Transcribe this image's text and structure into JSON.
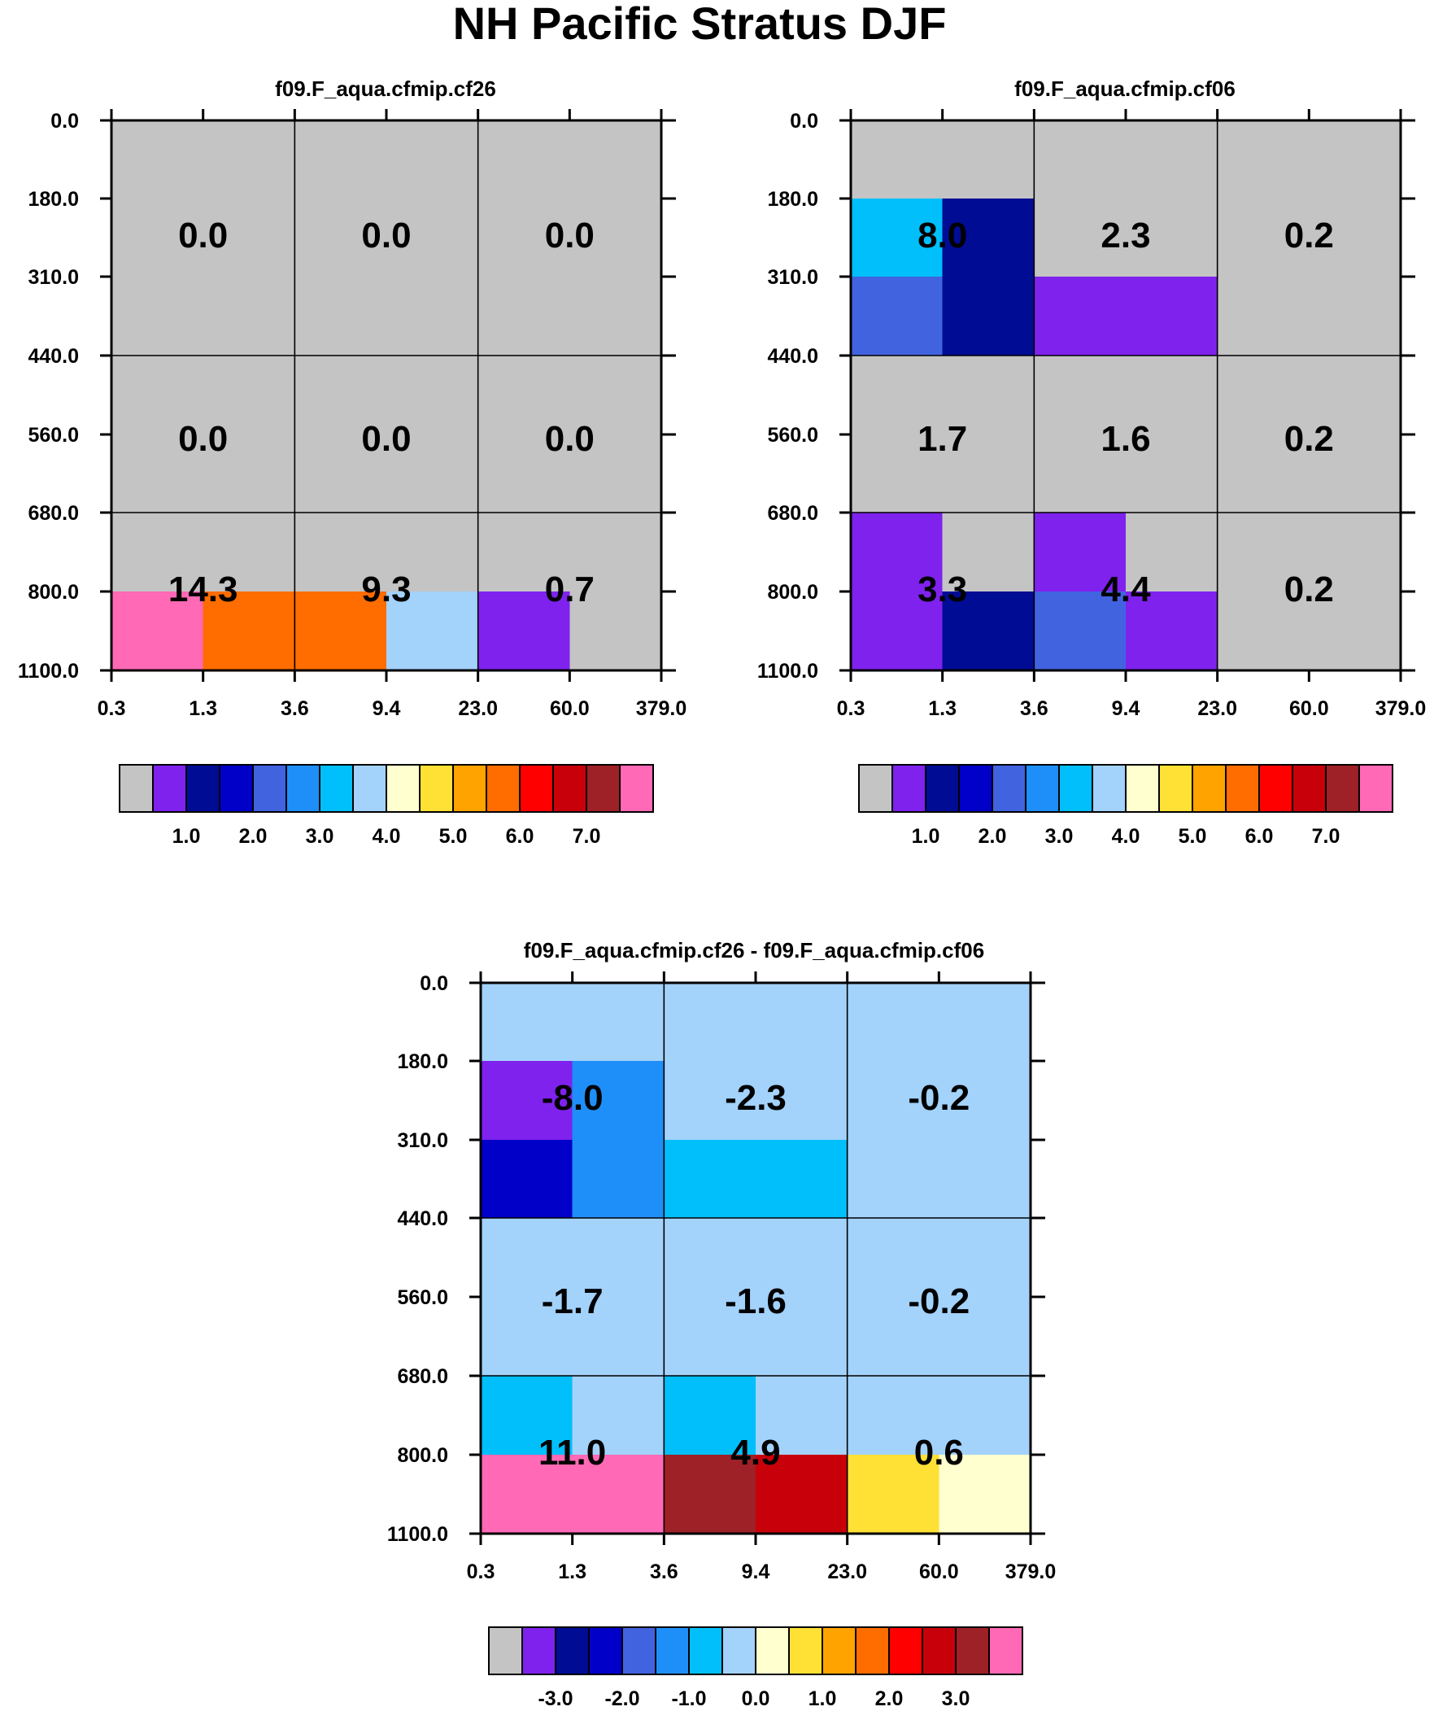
{
  "figure_title": "NH Pacific Stratus DJF",
  "colors": {
    "background": "#ffffff",
    "grid": "#000000",
    "frame": "#000000"
  },
  "abs_palette": [
    "#c4c4c4",
    "#7f22ee",
    "#000c94",
    "#0000c9",
    "#4163df",
    "#1e8ff8",
    "#00bffb",
    "#a3d2fb",
    "#ffffcf",
    "#ffe035",
    "#ffa300",
    "#ff6c00",
    "#ff0000",
    "#c8000a",
    "#9d2126",
    "#ff69b5"
  ],
  "diff_palette": [
    "#c4c4c4",
    "#7f22ee",
    "#000c94",
    "#0000c9",
    "#4163df",
    "#1e8ff8",
    "#00bffb",
    "#a3d2fb",
    "#ffffcf",
    "#ffe035",
    "#ffa300",
    "#ff6c00",
    "#ff0000",
    "#c8000a",
    "#9d2126",
    "#ff69b5"
  ],
  "chart_data": [
    {
      "type": "heatmap",
      "title": "f09.F_aqua.cfmip.cf26",
      "x_tick_labels": [
        "0.3",
        "1.3",
        "3.6",
        "9.4",
        "23.0",
        "60.0",
        "379.0"
      ],
      "y_tick_labels": [
        "0.0",
        "180.0",
        "310.0",
        "440.0",
        "560.0",
        "680.0",
        "800.0",
        "1100.0"
      ],
      "xlabel": "",
      "ylabel": "",
      "palette": "abs",
      "cell_colors": [
        [
          0,
          0,
          0,
          0,
          0,
          0
        ],
        [
          0,
          0,
          0,
          0,
          0,
          0
        ],
        [
          0,
          0,
          0,
          0,
          0,
          0
        ],
        [
          0,
          0,
          0,
          0,
          0,
          0
        ],
        [
          0,
          0,
          0,
          0,
          0,
          0
        ],
        [
          0,
          0,
          0,
          0,
          0,
          0
        ],
        [
          15,
          11,
          11,
          7,
          1,
          0
        ]
      ],
      "box_values": [
        [
          "0.0",
          "0.0",
          "0.0"
        ],
        [
          "0.0",
          "0.0",
          "0.0"
        ],
        [
          "14.3",
          "9.3",
          "0.7"
        ]
      ],
      "colorbar_labels": [
        "1.0",
        "2.0",
        "3.0",
        "4.0",
        "5.0",
        "6.0",
        "7.0"
      ]
    },
    {
      "type": "heatmap",
      "title": "f09.F_aqua.cfmip.cf06",
      "x_tick_labels": [
        "0.3",
        "1.3",
        "3.6",
        "9.4",
        "23.0",
        "60.0",
        "379.0"
      ],
      "y_tick_labels": [
        "0.0",
        "180.0",
        "310.0",
        "440.0",
        "560.0",
        "680.0",
        "800.0",
        "1100.0"
      ],
      "xlabel": "",
      "ylabel": "",
      "palette": "abs",
      "cell_colors": [
        [
          0,
          0,
          0,
          0,
          0,
          0
        ],
        [
          6,
          2,
          0,
          0,
          0,
          0
        ],
        [
          4,
          2,
          1,
          1,
          0,
          0
        ],
        [
          0,
          0,
          0,
          0,
          0,
          0
        ],
        [
          0,
          0,
          0,
          0,
          0,
          0
        ],
        [
          1,
          0,
          1,
          0,
          0,
          0
        ],
        [
          1,
          2,
          4,
          1,
          0,
          0
        ]
      ],
      "box_values": [
        [
          "8.0",
          "2.3",
          "0.2"
        ],
        [
          "1.7",
          "1.6",
          "0.2"
        ],
        [
          "3.3",
          "4.4",
          "0.2"
        ]
      ],
      "colorbar_labels": [
        "1.0",
        "2.0",
        "3.0",
        "4.0",
        "5.0",
        "6.0",
        "7.0"
      ]
    },
    {
      "type": "heatmap",
      "title": "f09.F_aqua.cfmip.cf26 - f09.F_aqua.cfmip.cf06",
      "x_tick_labels": [
        "0.3",
        "1.3",
        "3.6",
        "9.4",
        "23.0",
        "60.0",
        "379.0"
      ],
      "y_tick_labels": [
        "0.0",
        "180.0",
        "310.0",
        "440.0",
        "560.0",
        "680.0",
        "800.0",
        "1100.0"
      ],
      "xlabel": "",
      "ylabel": "",
      "palette": "diff",
      "cell_colors": [
        [
          7,
          7,
          7,
          7,
          7,
          7
        ],
        [
          1,
          5,
          7,
          7,
          7,
          7
        ],
        [
          3,
          5,
          6,
          6,
          7,
          7
        ],
        [
          7,
          7,
          7,
          7,
          7,
          7
        ],
        [
          7,
          7,
          7,
          7,
          7,
          7
        ],
        [
          6,
          7,
          6,
          7,
          7,
          7
        ],
        [
          15,
          15,
          14,
          13,
          9,
          8
        ]
      ],
      "box_values": [
        [
          "-8.0",
          "-2.3",
          "-0.2"
        ],
        [
          "-1.7",
          "-1.6",
          "-0.2"
        ],
        [
          "11.0",
          "4.9",
          "0.6"
        ]
      ],
      "colorbar_labels": [
        "-3.0",
        "-2.0",
        "-1.0",
        "0.0",
        "1.0",
        "2.0",
        "3.0"
      ]
    }
  ]
}
